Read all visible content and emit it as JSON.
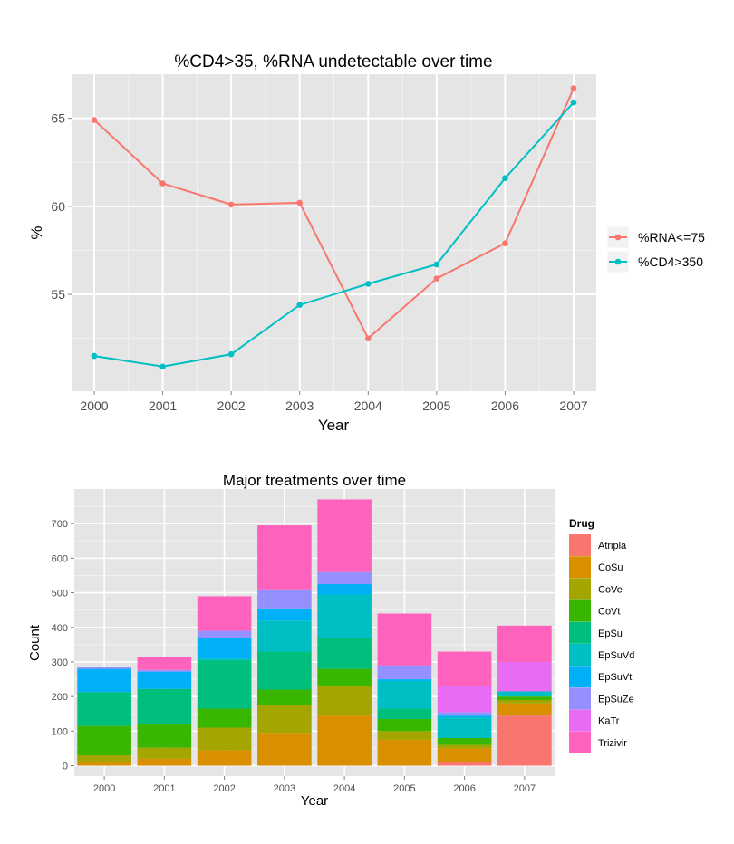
{
  "chart_data": [
    {
      "type": "line",
      "title": "%CD4>35, %RNA undetectable over time",
      "xlabel": "Year",
      "ylabel": "%",
      "x": [
        "2000",
        "2001",
        "2002",
        "2003",
        "2004",
        "2005",
        "2006",
        "2007"
      ],
      "y_ticks": [
        55,
        60,
        65
      ],
      "ylim": [
        49.5,
        67.5
      ],
      "grid": true,
      "legend_placement": "right",
      "series": [
        {
          "name": "%RNA<=75",
          "color": "#F8766D",
          "values": [
            64.9,
            61.3,
            60.1,
            60.2,
            52.5,
            55.9,
            57.9,
            66.7
          ]
        },
        {
          "name": "%CD4>350",
          "color": "#00BFC4",
          "values": [
            51.5,
            50.9,
            51.6,
            54.4,
            55.6,
            56.7,
            61.6,
            65.9
          ]
        }
      ]
    },
    {
      "type": "bar",
      "stacked": true,
      "title": "Major treatments over time",
      "xlabel": "Year",
      "ylabel": "Count",
      "categories": [
        "2000",
        "2001",
        "2002",
        "2003",
        "2004",
        "2005",
        "2006",
        "2007"
      ],
      "y_ticks": [
        0,
        100,
        200,
        300,
        400,
        500,
        600,
        700
      ],
      "ylim": [
        -30,
        800
      ],
      "grid": true,
      "legend_title": "Drug",
      "legend_placement": "right",
      "series": [
        {
          "name": "Atripla",
          "color": "#F8766D",
          "values": [
            0,
            0,
            0,
            0,
            0,
            0,
            10,
            145
          ]
        },
        {
          "name": "CoSu",
          "color": "#D89000",
          "values": [
            10,
            20,
            45,
            95,
            145,
            75,
            40,
            35
          ]
        },
        {
          "name": "CoVe",
          "color": "#A3A500",
          "values": [
            20,
            32,
            65,
            80,
            85,
            25,
            10,
            10
          ]
        },
        {
          "name": "CoVt",
          "color": "#39B600",
          "values": [
            85,
            70,
            55,
            45,
            50,
            35,
            20,
            10
          ]
        },
        {
          "name": "EpSu",
          "color": "#00BF7D",
          "values": [
            98,
            100,
            140,
            110,
            90,
            30,
            0,
            0
          ]
        },
        {
          "name": "EpSuVd",
          "color": "#00BFC4",
          "values": [
            0,
            0,
            5,
            90,
            125,
            80,
            60,
            15
          ]
        },
        {
          "name": "EpSuVt",
          "color": "#00B0F6",
          "values": [
            67,
            50,
            60,
            35,
            30,
            5,
            5,
            0
          ]
        },
        {
          "name": "EpSuZe",
          "color": "#9590FF",
          "values": [
            5,
            5,
            20,
            55,
            35,
            40,
            10,
            0
          ]
        },
        {
          "name": "KaTr",
          "color": "#E76BF3",
          "values": [
            0,
            0,
            0,
            0,
            0,
            0,
            75,
            85
          ]
        },
        {
          "name": "Trizivir",
          "color": "#FF62BC",
          "values": [
            0,
            38,
            100,
            185,
            210,
            150,
            100,
            105
          ]
        }
      ]
    }
  ]
}
